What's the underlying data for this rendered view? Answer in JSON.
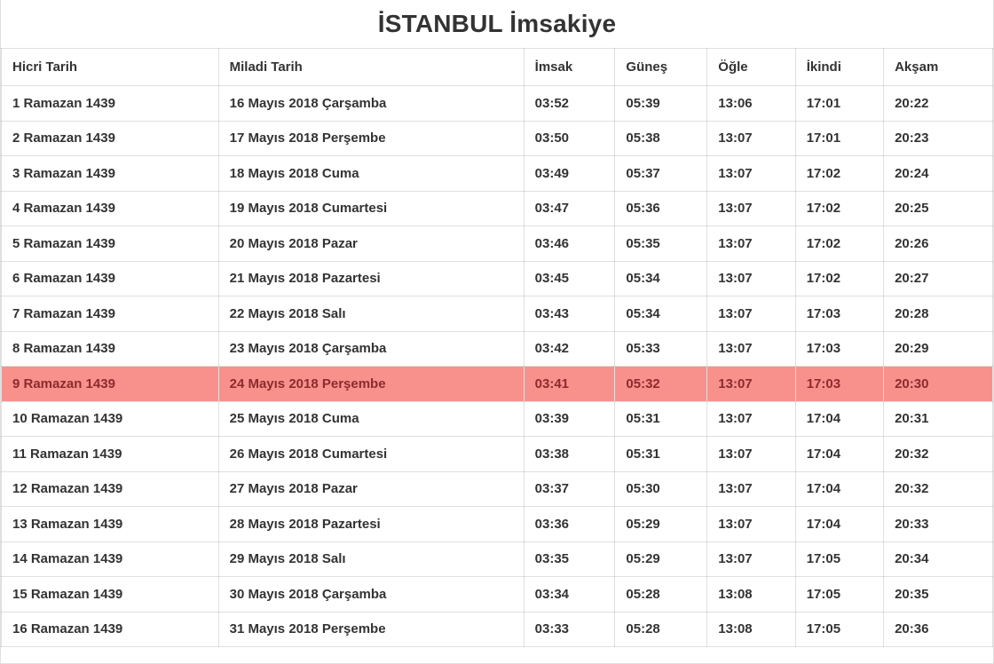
{
  "title": "İSTANBUL İmsakiye",
  "table": {
    "columns": [
      {
        "key": "hicri",
        "label": "Hicri Tarih"
      },
      {
        "key": "miladi",
        "label": "Miladi Tarih"
      },
      {
        "key": "imsak",
        "label": "İmsak"
      },
      {
        "key": "gunes",
        "label": "Güneş"
      },
      {
        "key": "ogle",
        "label": "Öğle"
      },
      {
        "key": "ikindi",
        "label": "İkindi"
      },
      {
        "key": "aksam",
        "label": "Akşam"
      }
    ],
    "highlighted_row_index": 8,
    "rows": [
      [
        "1 Ramazan 1439",
        "16 Mayıs 2018 Çarşamba",
        "03:52",
        "05:39",
        "13:06",
        "17:01",
        "20:22"
      ],
      [
        "2 Ramazan 1439",
        "17 Mayıs 2018 Perşembe",
        "03:50",
        "05:38",
        "13:07",
        "17:01",
        "20:23"
      ],
      [
        "3 Ramazan 1439",
        "18 Mayıs 2018 Cuma",
        "03:49",
        "05:37",
        "13:07",
        "17:02",
        "20:24"
      ],
      [
        "4 Ramazan 1439",
        "19 Mayıs 2018 Cumartesi",
        "03:47",
        "05:36",
        "13:07",
        "17:02",
        "20:25"
      ],
      [
        "5 Ramazan 1439",
        "20 Mayıs 2018 Pazar",
        "03:46",
        "05:35",
        "13:07",
        "17:02",
        "20:26"
      ],
      [
        "6 Ramazan 1439",
        "21 Mayıs 2018 Pazartesi",
        "03:45",
        "05:34",
        "13:07",
        "17:02",
        "20:27"
      ],
      [
        "7 Ramazan 1439",
        "22 Mayıs 2018 Salı",
        "03:43",
        "05:34",
        "13:07",
        "17:03",
        "20:28"
      ],
      [
        "8 Ramazan 1439",
        "23 Mayıs 2018 Çarşamba",
        "03:42",
        "05:33",
        "13:07",
        "17:03",
        "20:29"
      ],
      [
        "9 Ramazan 1439",
        "24 Mayıs 2018 Perşembe",
        "03:41",
        "05:32",
        "13:07",
        "17:03",
        "20:30"
      ],
      [
        "10 Ramazan 1439",
        "25 Mayıs 2018 Cuma",
        "03:39",
        "05:31",
        "13:07",
        "17:04",
        "20:31"
      ],
      [
        "11 Ramazan 1439",
        "26 Mayıs 2018 Cumartesi",
        "03:38",
        "05:31",
        "13:07",
        "17:04",
        "20:32"
      ],
      [
        "12 Ramazan 1439",
        "27 Mayıs 2018 Pazar",
        "03:37",
        "05:30",
        "13:07",
        "17:04",
        "20:32"
      ],
      [
        "13 Ramazan 1439",
        "28 Mayıs 2018 Pazartesi",
        "03:36",
        "05:29",
        "13:07",
        "17:04",
        "20:33"
      ],
      [
        "14 Ramazan 1439",
        "29 Mayıs 2018 Salı",
        "03:35",
        "05:29",
        "13:07",
        "17:05",
        "20:34"
      ],
      [
        "15 Ramazan 1439",
        "30 Mayıs 2018 Çarşamba",
        "03:34",
        "05:28",
        "13:08",
        "17:05",
        "20:35"
      ],
      [
        "16 Ramazan 1439",
        "31 Mayıs 2018 Perşembe",
        "03:33",
        "05:28",
        "13:08",
        "17:05",
        "20:36"
      ]
    ]
  },
  "colors": {
    "highlight_bg": "#f8918c",
    "highlight_text": "#8c2b2e",
    "text": "#333333",
    "border": "#dddddd"
  }
}
